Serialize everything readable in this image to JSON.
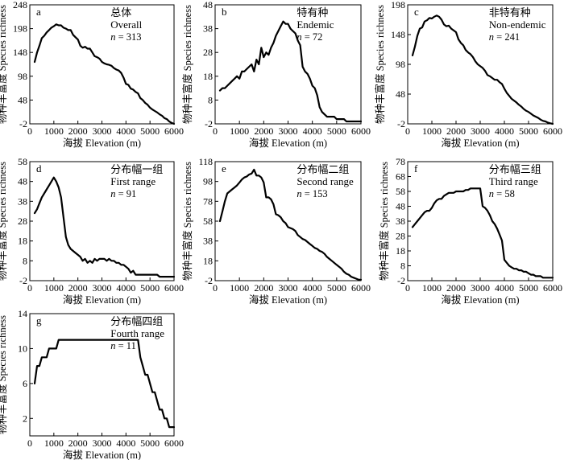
{
  "figure": {
    "y_axis_title": "物种丰富度 Species richness",
    "x_axis_title": "海拔 Elevation (m)"
  },
  "chart_data": [
    {
      "type": "line",
      "panel": "a",
      "label_cn": "总体",
      "label_en": "Overall",
      "n_var": "n",
      "n_text": " = 313",
      "xlim": [
        0,
        6000
      ],
      "ylim": [
        -2,
        248
      ],
      "x_ticks": [
        0,
        1000,
        2000,
        3000,
        4000,
        5000,
        6000
      ],
      "y_ticks": [
        -2,
        48,
        98,
        148,
        198,
        248
      ],
      "series": [
        {
          "x": [
            200,
            300,
            400,
            500,
            600,
            700,
            800,
            900,
            1000,
            1100,
            1200,
            1300,
            1400,
            1500,
            1600,
            1700,
            1800,
            1900,
            2000,
            2100,
            2200,
            2300,
            2400,
            2500,
            2600,
            2700,
            2800,
            2900,
            3000,
            3100,
            3200,
            3300,
            3400,
            3500,
            3600,
            3700,
            3800,
            3900,
            4000,
            4100,
            4200,
            4300,
            4400,
            4500,
            4600,
            4700,
            4800,
            4900,
            5000,
            5100,
            5200,
            5300,
            5400,
            5500,
            5600,
            5700,
            5800,
            5900,
            6000
          ],
          "y": [
            128,
            148,
            162,
            178,
            183,
            190,
            195,
            200,
            203,
            207,
            205,
            205,
            200,
            198,
            195,
            195,
            185,
            180,
            175,
            162,
            158,
            160,
            156,
            156,
            148,
            140,
            138,
            135,
            128,
            125,
            123,
            122,
            120,
            115,
            112,
            110,
            105,
            95,
            82,
            80,
            72,
            70,
            65,
            62,
            52,
            48,
            42,
            38,
            32,
            28,
            25,
            22,
            18,
            15,
            10,
            8,
            3,
            0,
            -2
          ]
        }
      ]
    },
    {
      "type": "line",
      "panel": "b",
      "label_cn": "特有种",
      "label_en": "Endemic",
      "n_var": "n",
      "n_text": " = 72",
      "xlim": [
        0,
        6000
      ],
      "ylim": [
        -2,
        48
      ],
      "x_ticks": [
        0,
        1000,
        2000,
        3000,
        4000,
        5000,
        6000
      ],
      "y_ticks": [
        -2,
        8,
        18,
        28,
        38,
        48
      ],
      "series": [
        {
          "x": [
            200,
            300,
            400,
            500,
            600,
            700,
            800,
            900,
            1000,
            1100,
            1200,
            1300,
            1400,
            1500,
            1600,
            1700,
            1800,
            1900,
            2000,
            2100,
            2200,
            2300,
            2400,
            2500,
            2600,
            2700,
            2800,
            2900,
            3000,
            3100,
            3200,
            3300,
            3400,
            3500,
            3600,
            3700,
            3800,
            3900,
            4000,
            4100,
            4200,
            4300,
            4400,
            4500,
            4600,
            4700,
            4800,
            4900,
            5000,
            5100,
            5200,
            5300,
            5400,
            5500,
            5600,
            5700,
            5800,
            5900,
            6000
          ],
          "y": [
            12,
            13,
            13,
            14,
            15,
            16,
            17,
            18,
            17,
            20,
            20,
            21,
            22,
            23,
            20,
            25,
            23,
            30,
            26,
            28,
            27,
            30,
            32,
            35,
            37,
            39,
            41,
            40,
            40,
            38,
            37,
            36,
            33,
            31,
            22,
            20,
            19,
            17,
            14,
            13,
            10,
            5,
            3,
            2,
            1,
            1,
            1,
            1,
            0,
            0,
            0,
            0,
            -1,
            -1,
            -1,
            -1,
            -1,
            -1,
            -1
          ]
        }
      ]
    },
    {
      "type": "line",
      "panel": "c",
      "label_cn": "非特有种",
      "label_en": "Non-endemic",
      "n_var": "n",
      "n_text": " = 241",
      "xlim": [
        0,
        6000
      ],
      "ylim": [
        -2,
        198
      ],
      "x_ticks": [
        0,
        1000,
        2000,
        3000,
        4000,
        5000,
        6000
      ],
      "y_ticks": [
        -2,
        48,
        98,
        148,
        198
      ],
      "series": [
        {
          "x": [
            200,
            300,
            400,
            500,
            600,
            700,
            800,
            900,
            1000,
            1100,
            1200,
            1300,
            1400,
            1500,
            1600,
            1700,
            1800,
            1900,
            2000,
            2100,
            2200,
            2300,
            2400,
            2500,
            2600,
            2700,
            2800,
            2900,
            3000,
            3100,
            3200,
            3300,
            3400,
            3500,
            3600,
            3700,
            3800,
            3900,
            4000,
            4100,
            4200,
            4300,
            4400,
            4500,
            4600,
            4700,
            4800,
            4900,
            5000,
            5100,
            5200,
            5300,
            5400,
            5500,
            5600,
            5700,
            5800,
            5900,
            6000
          ],
          "y": [
            113,
            128,
            146,
            158,
            160,
            170,
            172,
            176,
            175,
            178,
            180,
            178,
            173,
            165,
            162,
            163,
            158,
            155,
            152,
            140,
            134,
            130,
            122,
            118,
            115,
            110,
            103,
            98,
            95,
            92,
            87,
            80,
            78,
            75,
            72,
            72,
            68,
            65,
            57,
            50,
            45,
            40,
            37,
            34,
            30,
            27,
            23,
            20,
            18,
            15,
            12,
            10,
            8,
            5,
            3,
            2,
            0,
            -1,
            -2
          ]
        }
      ]
    },
    {
      "type": "line",
      "panel": "d",
      "label_cn": "分布幅一组",
      "label_en": "First range",
      "n_var": "n",
      "n_text": " = 91",
      "xlim": [
        0,
        6000
      ],
      "ylim": [
        -2,
        58
      ],
      "x_ticks": [
        0,
        1000,
        2000,
        3000,
        4000,
        5000,
        6000
      ],
      "y_ticks": [
        -2,
        8,
        18,
        28,
        38,
        48,
        58
      ],
      "series": [
        {
          "x": [
            200,
            300,
            400,
            500,
            600,
            700,
            800,
            900,
            1000,
            1100,
            1200,
            1300,
            1400,
            1500,
            1600,
            1700,
            1800,
            1900,
            2000,
            2100,
            2200,
            2300,
            2400,
            2500,
            2600,
            2700,
            2800,
            2900,
            3000,
            3100,
            3200,
            3300,
            3400,
            3500,
            3600,
            3700,
            3800,
            3900,
            4000,
            4100,
            4200,
            4300,
            4400,
            4500,
            4600,
            4700,
            4800,
            4900,
            5000,
            5100,
            5200,
            5300,
            5400,
            5500,
            5600,
            5700,
            5800,
            5900,
            6000
          ],
          "y": [
            32,
            34,
            37,
            40,
            42,
            44,
            46,
            48,
            50,
            48,
            45,
            40,
            30,
            20,
            16,
            14,
            13,
            12,
            11,
            10,
            8,
            9,
            7,
            8,
            7,
            9,
            8,
            9,
            9,
            9,
            8,
            9,
            8,
            8,
            7,
            7,
            6,
            6,
            5,
            4,
            2,
            3,
            1,
            1,
            1,
            1,
            1,
            1,
            1,
            1,
            1,
            1,
            0,
            0,
            0,
            0,
            0,
            0,
            0
          ]
        }
      ]
    },
    {
      "type": "line",
      "panel": "e",
      "label_cn": "分布幅二组",
      "label_en": "Second range",
      "n_var": "n",
      "n_text": " = 153",
      "xlim": [
        0,
        6000
      ],
      "ylim": [
        -2,
        118
      ],
      "x_ticks": [
        0,
        1000,
        2000,
        3000,
        4000,
        5000,
        6000
      ],
      "y_ticks": [
        -2,
        18,
        38,
        58,
        78,
        98,
        118
      ],
      "series": [
        {
          "x": [
            200,
            300,
            400,
            500,
            600,
            700,
            800,
            900,
            1000,
            1100,
            1200,
            1300,
            1400,
            1500,
            1600,
            1700,
            1800,
            1900,
            2000,
            2100,
            2200,
            2300,
            2400,
            2500,
            2600,
            2700,
            2800,
            2900,
            3000,
            3100,
            3200,
            3300,
            3400,
            3500,
            3600,
            3700,
            3800,
            3900,
            4000,
            4100,
            4200,
            4300,
            4400,
            4500,
            4600,
            4700,
            4800,
            4900,
            5000,
            5100,
            5200,
            5300,
            5400,
            5500,
            5600,
            5700,
            5800,
            5900,
            6000
          ],
          "y": [
            58,
            68,
            78,
            86,
            88,
            90,
            92,
            94,
            97,
            100,
            102,
            103,
            105,
            106,
            110,
            104,
            104,
            102,
            97,
            82,
            82,
            80,
            75,
            65,
            64,
            62,
            58,
            56,
            52,
            51,
            50,
            48,
            44,
            42,
            40,
            39,
            37,
            35,
            33,
            31,
            30,
            28,
            27,
            25,
            22,
            20,
            18,
            16,
            14,
            12,
            10,
            7,
            5,
            4,
            2,
            1,
            0,
            -1,
            -1
          ]
        }
      ]
    },
    {
      "type": "line",
      "panel": "f",
      "label_cn": "分布幅三组",
      "label_en": "Third range",
      "n_var": "n",
      "n_text": " = 58",
      "xlim": [
        0,
        6000
      ],
      "ylim": [
        -2,
        78
      ],
      "x_ticks": [
        0,
        1000,
        2000,
        3000,
        4000,
        5000,
        6000
      ],
      "y_ticks": [
        -2,
        8,
        18,
        28,
        38,
        48,
        58,
        68,
        78
      ],
      "series": [
        {
          "x": [
            200,
            300,
            400,
            500,
            600,
            700,
            800,
            900,
            1000,
            1100,
            1200,
            1300,
            1400,
            1500,
            1600,
            1700,
            1800,
            1900,
            2000,
            2100,
            2200,
            2300,
            2400,
            2500,
            2600,
            2700,
            2800,
            2900,
            3000,
            3100,
            3200,
            3300,
            3400,
            3500,
            3600,
            3700,
            3800,
            3900,
            4000,
            4100,
            4200,
            4300,
            4400,
            4500,
            4600,
            4700,
            4800,
            4900,
            5000,
            5100,
            5200,
            5300,
            5400,
            5500,
            5600,
            5700,
            5800,
            5900,
            6000
          ],
          "y": [
            34,
            36,
            38,
            40,
            42,
            44,
            45,
            45,
            47,
            50,
            52,
            53,
            53,
            55,
            56,
            57,
            57,
            57,
            58,
            58,
            58,
            58,
            59,
            59,
            60,
            60,
            60,
            60,
            60,
            48,
            47,
            45,
            42,
            38,
            36,
            33,
            29,
            25,
            12,
            10,
            8,
            7,
            6,
            6,
            5,
            5,
            4,
            4,
            3,
            2,
            2,
            1,
            1,
            1,
            0,
            0,
            0,
            0,
            0
          ]
        }
      ]
    },
    {
      "type": "line",
      "panel": "g",
      "label_cn": "分布幅四组",
      "label_en": "Fourth range",
      "n_var": "n",
      "n_text": " = 11",
      "xlim": [
        0,
        6000
      ],
      "ylim": [
        0,
        14
      ],
      "x_ticks": [
        0,
        1000,
        2000,
        3000,
        4000,
        5000,
        6000
      ],
      "y_ticks": [
        2,
        6,
        10,
        14
      ],
      "series": [
        {
          "x": [
            200,
            300,
            400,
            500,
            600,
            700,
            800,
            900,
            1000,
            1100,
            1200,
            1300,
            1400,
            1500,
            1600,
            1700,
            1800,
            1900,
            2000,
            2100,
            2200,
            2300,
            2400,
            2500,
            2600,
            2700,
            2800,
            2900,
            3000,
            3100,
            3200,
            3300,
            3400,
            3500,
            3600,
            3700,
            3800,
            3900,
            4000,
            4100,
            4200,
            4300,
            4400,
            4500,
            4600,
            4700,
            4800,
            4900,
            5000,
            5100,
            5200,
            5300,
            5400,
            5500,
            5600,
            5700,
            5800,
            5900,
            6000
          ],
          "y": [
            6,
            8,
            8,
            9,
            9,
            9,
            10,
            10,
            10,
            10,
            11,
            11,
            11,
            11,
            11,
            11,
            11,
            11,
            11,
            11,
            11,
            11,
            11,
            11,
            11,
            11,
            11,
            11,
            11,
            11,
            11,
            11,
            11,
            11,
            11,
            11,
            11,
            11,
            11,
            11,
            11,
            11,
            11,
            11,
            9,
            8,
            7,
            7,
            6,
            5,
            5,
            4,
            3,
            3,
            2,
            2,
            1,
            1,
            1
          ]
        }
      ]
    }
  ]
}
